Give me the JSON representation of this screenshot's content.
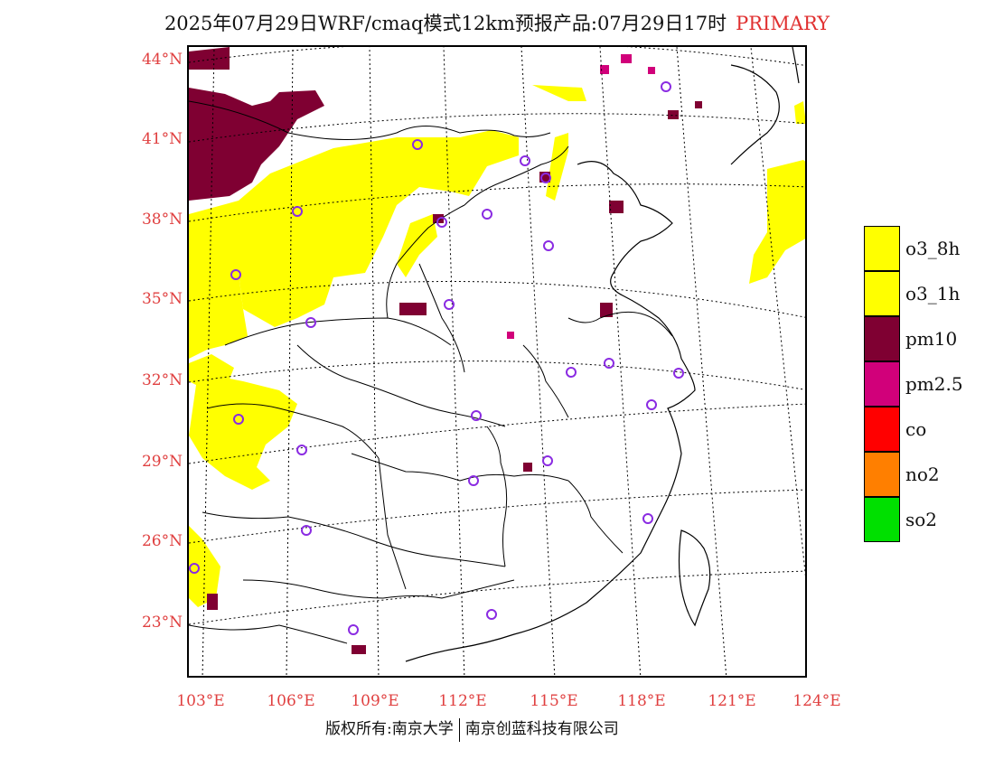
{
  "title": {
    "main": "2025年07月29日WRF/cmaq模式12km预报产品:07月29日17时",
    "tag": "PRIMARY"
  },
  "colors": {
    "o3": "#ffff00",
    "pm10": "#7f0032",
    "pm25": "#d1007a",
    "co": "#ff0000",
    "no2": "#ff7f00",
    "so2": "#00e000",
    "label_red": "#e04040",
    "site_marker": "#8a2be2"
  },
  "axes": {
    "lat_labels": [
      "44°N",
      "41°N",
      "38°N",
      "35°N",
      "32°N",
      "29°N",
      "26°N",
      "23°N"
    ],
    "lon_labels": [
      "103°E",
      "106°E",
      "109°E",
      "112°E",
      "115°E",
      "118°E",
      "121°E",
      "124°E"
    ]
  },
  "legend": [
    {
      "label": "o3_8h",
      "color": "#ffff00"
    },
    {
      "label": "o3_1h",
      "color": "#ffff00"
    },
    {
      "label": "pm10",
      "color": "#7f0032"
    },
    {
      "label": "pm2.5",
      "color": "#d1007a"
    },
    {
      "label": "co",
      "color": "#ff0000"
    },
    {
      "label": "no2",
      "color": "#ff7f00"
    },
    {
      "label": "so2",
      "color": "#00e000"
    }
  ],
  "footer": {
    "left": "版权所有:南京大学",
    "right": "南京创蓝科技有限公司"
  }
}
